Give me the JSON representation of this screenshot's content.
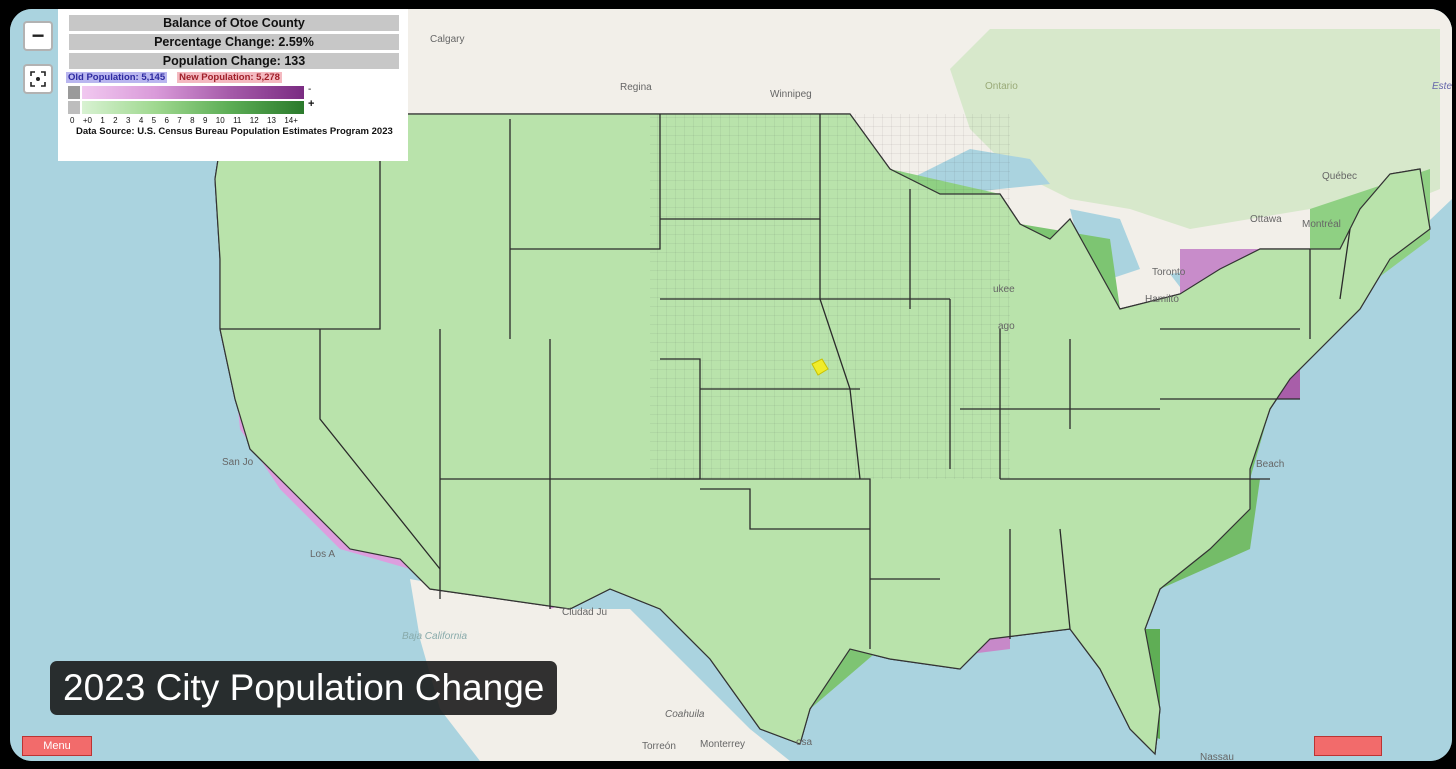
{
  "legend": {
    "county_name": "Balance of Otoe County",
    "percentage_change": "Percentage Change: 2.59%",
    "population_change": "Population Change: 133",
    "old_population": "Old Population: 5,145",
    "new_population": "New Population: 5,278",
    "scale_ticks": [
      "0",
      "+0",
      "1",
      "2",
      "3",
      "4",
      "5",
      "6",
      "7",
      "8",
      "9",
      "10",
      "11",
      "12",
      "13",
      "14+"
    ],
    "negative_symbol": "-",
    "positive_symbol": "+",
    "source": "Data Source: U.S. Census Bureau Population Estimates Program 2023"
  },
  "controls": {
    "zoom_out": "−",
    "fullscreen_icon": "fullscreen-icon"
  },
  "caption": "2023 City Population Change",
  "menu_label": "Menu",
  "cities": [
    {
      "name": "Calgary"
    },
    {
      "name": "Regina"
    },
    {
      "name": "Winnipeg"
    },
    {
      "name": "Ontario"
    },
    {
      "name": "Québec"
    },
    {
      "name": "Ottawa"
    },
    {
      "name": "Montréal"
    },
    {
      "name": "Toronto"
    },
    {
      "name": "Hamilto"
    },
    {
      "name": "ukee"
    },
    {
      "name": "ago"
    },
    {
      "name": "San Jo"
    },
    {
      "name": "Los A"
    },
    {
      "name": "Ciudad Ju"
    },
    {
      "name": "Baja California"
    },
    {
      "name": "Torreón"
    },
    {
      "name": "Monterrey"
    },
    {
      "name": "Coahuila"
    },
    {
      "name": "osa"
    },
    {
      "name": "Beach"
    },
    {
      "name": "Nassau"
    },
    {
      "name": "Estevan"
    }
  ],
  "colors": {
    "ocean": "#aad3df",
    "land": "#f2efe9",
    "canada_forest": "#cfe6c3",
    "purple": "#d590d5",
    "green": "#8fcf84"
  }
}
